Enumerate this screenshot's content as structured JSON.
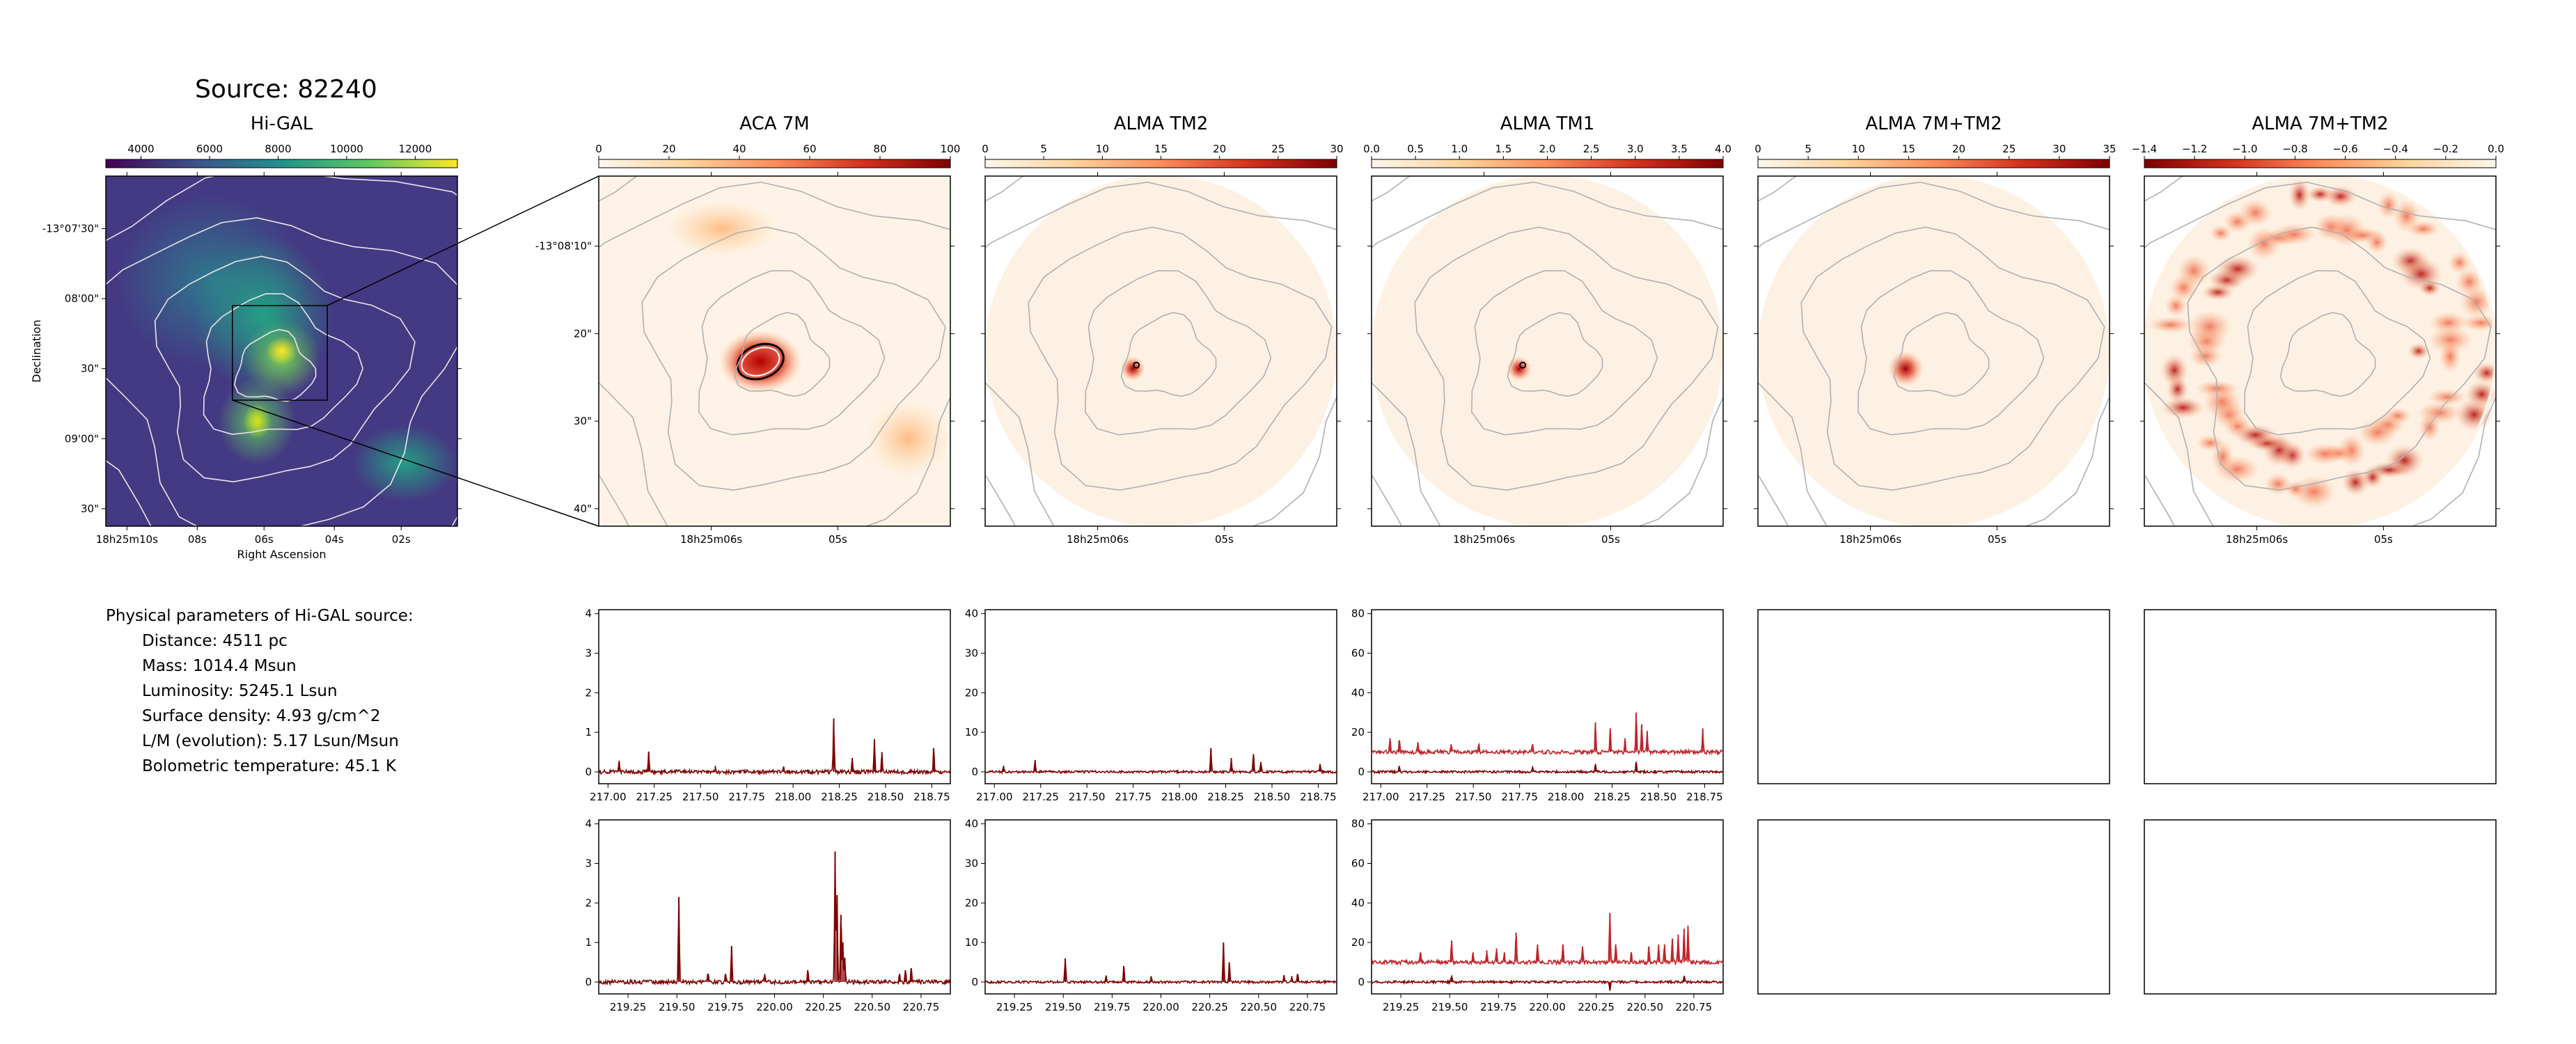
{
  "source_title": "Source: 82240",
  "params": {
    "heading": "Physical parameters of Hi-GAL source:",
    "rows": [
      "Distance: 4511 pc",
      "Mass: 1014.4 Msun",
      "Luminosity: 5245.1 Lsun",
      "Surface density: 4.93 g/cm^2",
      "L/M (evolution): 5.17 Lsun/Msun",
      "Bolometric temperature: 45.1 K"
    ]
  },
  "colors": {
    "viridis": [
      "#440154",
      "#3b528b",
      "#21918c",
      "#5ec962",
      "#fde725"
    ],
    "orrd": [
      "#fff7ec",
      "#fdd49e",
      "#fc8d59",
      "#d7301f",
      "#7f0000"
    ],
    "spec_dark": "#7f0000",
    "spec_light": "#c0252a",
    "contour_gray": "#b0b0b0"
  },
  "chart_data": [
    {
      "type": "heatmap",
      "title": "Hi-GAL",
      "colormap": "viridis",
      "colorbar_ticks": [
        "4000",
        "6000",
        "8000",
        "10000",
        "12000"
      ],
      "xlabel": "Right Ascension",
      "ylabel": "Declination",
      "x_ticks": [
        "18h25m10s",
        "08s",
        "06s",
        "04s",
        "02s"
      ],
      "y_ticks": [
        "-13°07'30\"",
        "08'00\"",
        "30\"",
        "09'00\"",
        "30\""
      ]
    },
    {
      "type": "heatmap",
      "title": "ACA 7M",
      "colormap": "OrRd",
      "colorbar_ticks": [
        "0",
        "20",
        "40",
        "60",
        "80",
        "100"
      ],
      "x_ticks": [
        "18h25m06s",
        "05s"
      ],
      "y_ticks": [
        "-13°08'10\"",
        "20\"",
        "30\"",
        "40\""
      ]
    },
    {
      "type": "heatmap",
      "title": "ALMA TM2",
      "colormap": "OrRd",
      "colorbar_ticks": [
        "0",
        "5",
        "10",
        "15",
        "20",
        "25",
        "30"
      ],
      "x_ticks": [
        "18h25m06s",
        "05s"
      ]
    },
    {
      "type": "heatmap",
      "title": "ALMA TM1",
      "colormap": "OrRd",
      "colorbar_ticks": [
        "0.0",
        "0.5",
        "1.0",
        "1.5",
        "2.0",
        "2.5",
        "3.0",
        "3.5",
        "4.0"
      ],
      "x_ticks": [
        "18h25m06s",
        "05s"
      ]
    },
    {
      "type": "heatmap",
      "title": "ALMA 7M+TM2",
      "colormap": "OrRd",
      "colorbar_ticks": [
        "0",
        "5",
        "10",
        "15",
        "20",
        "25",
        "30",
        "35"
      ],
      "x_ticks": [
        "18h25m06s",
        "05s"
      ]
    },
    {
      "type": "heatmap",
      "title": "ALMA 7M+TM2",
      "colormap": "OrRd_r",
      "colorbar_ticks": [
        "−1.4",
        "−1.2",
        "−1.0",
        "−0.8",
        "−0.6",
        "−0.4",
        "−0.2",
        "0.0"
      ],
      "x_ticks": [
        "18h25m06s",
        "05s"
      ]
    },
    {
      "type": "line",
      "panel": "spec-aca-low",
      "xlim": [
        216.95,
        218.85
      ],
      "ylim": [
        -0.3,
        4.1
      ],
      "x_ticks": [
        "217.00",
        "217.25",
        "217.50",
        "217.75",
        "218.00",
        "218.25",
        "218.50",
        "218.75"
      ],
      "y_ticks": [
        "0",
        "1",
        "2",
        "3",
        "4"
      ],
      "series": [
        {
          "offset": 0,
          "noise": 0.05,
          "lines": [
            [
              217.06,
              0.25
            ],
            [
              217.22,
              0.5
            ],
            [
              217.58,
              0.15
            ],
            [
              217.95,
              0.1
            ],
            [
              218.22,
              1.35
            ],
            [
              218.32,
              0.35
            ],
            [
              218.44,
              0.8
            ],
            [
              218.48,
              0.5
            ],
            [
              218.76,
              0.6
            ]
          ]
        }
      ]
    },
    {
      "type": "line",
      "panel": "spec-tm2-low",
      "xlim": [
        216.95,
        218.85
      ],
      "ylim": [
        -3,
        41
      ],
      "x_ticks": [
        "217.00",
        "217.25",
        "217.50",
        "217.75",
        "218.00",
        "218.25",
        "218.50",
        "218.75"
      ],
      "y_ticks": [
        "0",
        "10",
        "20",
        "30",
        "40"
      ],
      "series": [
        {
          "offset": 0,
          "noise": 0.3,
          "lines": [
            [
              217.05,
              1.5
            ],
            [
              217.22,
              3
            ],
            [
              218.17,
              6
            ],
            [
              218.28,
              3.5
            ],
            [
              218.4,
              4.5
            ],
            [
              218.44,
              2.5
            ],
            [
              218.76,
              2
            ]
          ]
        }
      ]
    },
    {
      "type": "line",
      "panel": "spec-tm1-low",
      "xlim": [
        216.95,
        218.85
      ],
      "ylim": [
        -6,
        82
      ],
      "x_ticks": [
        "217.00",
        "217.25",
        "217.50",
        "217.75",
        "218.00",
        "218.25",
        "218.50",
        "218.75"
      ],
      "y_ticks": [
        "0",
        "20",
        "40",
        "60",
        "80"
      ],
      "series": [
        {
          "offset": 10,
          "noise": 1.0,
          "lines": [
            [
              217.05,
              7
            ],
            [
              217.1,
              6
            ],
            [
              217.2,
              5
            ],
            [
              217.38,
              4
            ],
            [
              217.53,
              4
            ],
            [
              217.82,
              4
            ],
            [
              218.16,
              15
            ],
            [
              218.24,
              12
            ],
            [
              218.32,
              7
            ],
            [
              218.38,
              20
            ],
            [
              218.41,
              14
            ],
            [
              218.44,
              10
            ],
            [
              218.74,
              12
            ]
          ]
        },
        {
          "offset": 0,
          "noise": 0.6,
          "lines": [
            [
              217.1,
              3
            ],
            [
              217.82,
              2
            ],
            [
              218.16,
              4
            ],
            [
              218.38,
              5
            ]
          ]
        }
      ]
    },
    {
      "type": "line",
      "panel": "spec-aca-high",
      "xlim": [
        219.1,
        220.9
      ],
      "ylim": [
        -0.3,
        4.1
      ],
      "x_ticks": [
        "219.25",
        "219.50",
        "219.75",
        "220.00",
        "220.25",
        "220.50",
        "220.75"
      ],
      "y_ticks": [
        "0",
        "1",
        "2",
        "3",
        "4"
      ],
      "series": [
        {
          "offset": 0,
          "noise": 0.05,
          "lines": [
            [
              219.51,
              2.15
            ],
            [
              219.66,
              0.2
            ],
            [
              219.75,
              0.2
            ],
            [
              219.78,
              0.9
            ],
            [
              219.95,
              0.2
            ],
            [
              220.17,
              0.3
            ],
            [
              220.31,
              3.3
            ],
            [
              220.32,
              2.2
            ],
            [
              220.34,
              1.7
            ],
            [
              220.35,
              1.0
            ],
            [
              220.36,
              0.6
            ],
            [
              220.64,
              0.2
            ],
            [
              220.67,
              0.3
            ],
            [
              220.7,
              0.35
            ]
          ]
        }
      ]
    },
    {
      "type": "line",
      "panel": "spec-tm2-high",
      "xlim": [
        219.1,
        220.9
      ],
      "ylim": [
        -3,
        41
      ],
      "x_ticks": [
        "219.25",
        "219.50",
        "219.75",
        "220.00",
        "220.25",
        "220.50",
        "220.75"
      ],
      "y_ticks": [
        "0",
        "10",
        "20",
        "30",
        "40"
      ],
      "series": [
        {
          "offset": 0,
          "noise": 0.3,
          "lines": [
            [
              219.51,
              6
            ],
            [
              219.72,
              1.5
            ],
            [
              219.81,
              4
            ],
            [
              219.95,
              1.5
            ],
            [
              220.32,
              10
            ],
            [
              220.35,
              5
            ],
            [
              220.63,
              1.5
            ],
            [
              220.67,
              1.5
            ],
            [
              220.7,
              2
            ]
          ]
        }
      ]
    },
    {
      "type": "line",
      "panel": "spec-tm1-high",
      "xlim": [
        219.1,
        220.9
      ],
      "ylim": [
        -6,
        82
      ],
      "x_ticks": [
        "219.25",
        "219.50",
        "219.75",
        "220.00",
        "220.25",
        "220.50",
        "220.75"
      ],
      "y_ticks": [
        "0",
        "20",
        "40",
        "60",
        "80"
      ],
      "series": [
        {
          "offset": 10,
          "noise": 1.0,
          "lines": [
            [
              219.35,
              5
            ],
            [
              219.51,
              11
            ],
            [
              219.62,
              5
            ],
            [
              219.69,
              6
            ],
            [
              219.74,
              7
            ],
            [
              219.78,
              5
            ],
            [
              219.84,
              15
            ],
            [
              219.95,
              9
            ],
            [
              220.08,
              9
            ],
            [
              220.18,
              8
            ],
            [
              220.32,
              25
            ],
            [
              220.35,
              9
            ],
            [
              220.43,
              5
            ],
            [
              220.52,
              8
            ],
            [
              220.57,
              9
            ],
            [
              220.6,
              9
            ],
            [
              220.64,
              12
            ],
            [
              220.67,
              14
            ],
            [
              220.7,
              17
            ],
            [
              220.72,
              18
            ]
          ]
        },
        {
          "offset": 0,
          "noise": 0.6,
          "lines": [
            [
              219.51,
              3
            ],
            [
              220.32,
              -4
            ],
            [
              220.7,
              3
            ]
          ]
        }
      ]
    }
  ]
}
